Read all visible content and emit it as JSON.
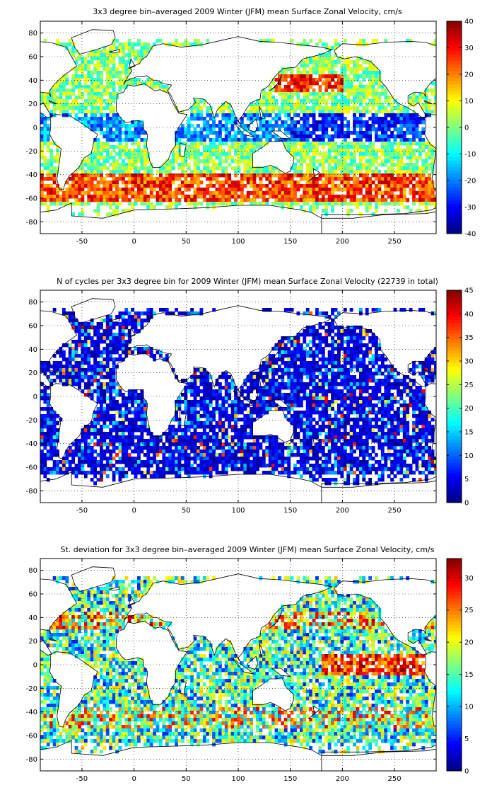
{
  "chart_data": [
    {
      "type": "heatmap",
      "title": "3x3 degree bin–averaged 2009 Winter (JFM) mean Surface Zonal Velocity, cm/s",
      "xlabel": "",
      "ylabel": "",
      "x_ticks": [
        "-50",
        "0",
        "50",
        "100",
        "150",
        "200",
        "250"
      ],
      "y_ticks": [
        "80",
        "60",
        "40",
        "20",
        "0",
        "-20",
        "-40",
        "-60",
        "-80"
      ],
      "xlim": [
        -90,
        290
      ],
      "ylim": [
        -90,
        90
      ],
      "grid": "dotted",
      "colorbar": {
        "min": -40,
        "max": 40,
        "ticks": [
          "40",
          "30",
          "20",
          "10",
          "0",
          "-10",
          "-20",
          "-30",
          "-40"
        ]
      },
      "colormap": "jet",
      "bin_size_deg": 3
    },
    {
      "type": "heatmap",
      "title": "N of cycles per 3x3 degree bin for 2009 Winter (JFM) mean Surface Zonal Velocity (22739 in total)",
      "xlabel": "",
      "ylabel": "",
      "x_ticks": [
        "-50",
        "0",
        "50",
        "100",
        "150",
        "200",
        "250"
      ],
      "y_ticks": [
        "80",
        "60",
        "40",
        "20",
        "0",
        "-20",
        "-40",
        "-60",
        "-80"
      ],
      "xlim": [
        -90,
        290
      ],
      "ylim": [
        -90,
        90
      ],
      "grid": "dotted",
      "colorbar": {
        "min": 0,
        "max": 45,
        "ticks": [
          "45",
          "40",
          "35",
          "30",
          "25",
          "20",
          "15",
          "10",
          "5",
          "0"
        ]
      },
      "colormap": "jet",
      "bin_size_deg": 3
    },
    {
      "type": "heatmap",
      "title": "St. deviation for 3x3 degree bin–averaged 2009 Winter (JFM) mean Surface Zonal Velocity, cm/s",
      "xlabel": "",
      "ylabel": "",
      "x_ticks": [
        "-50",
        "0",
        "50",
        "100",
        "150",
        "200",
        "250"
      ],
      "y_ticks": [
        "80",
        "60",
        "40",
        "20",
        "0",
        "-20",
        "-40",
        "-60",
        "-80"
      ],
      "xlim": [
        -90,
        290
      ],
      "ylim": [
        -90,
        90
      ],
      "grid": "dotted",
      "colorbar": {
        "min": 0,
        "max": 33,
        "ticks": [
          "30",
          "25",
          "20",
          "15",
          "10",
          "5",
          "0"
        ]
      },
      "colormap": "jet",
      "bin_size_deg": 3
    }
  ]
}
